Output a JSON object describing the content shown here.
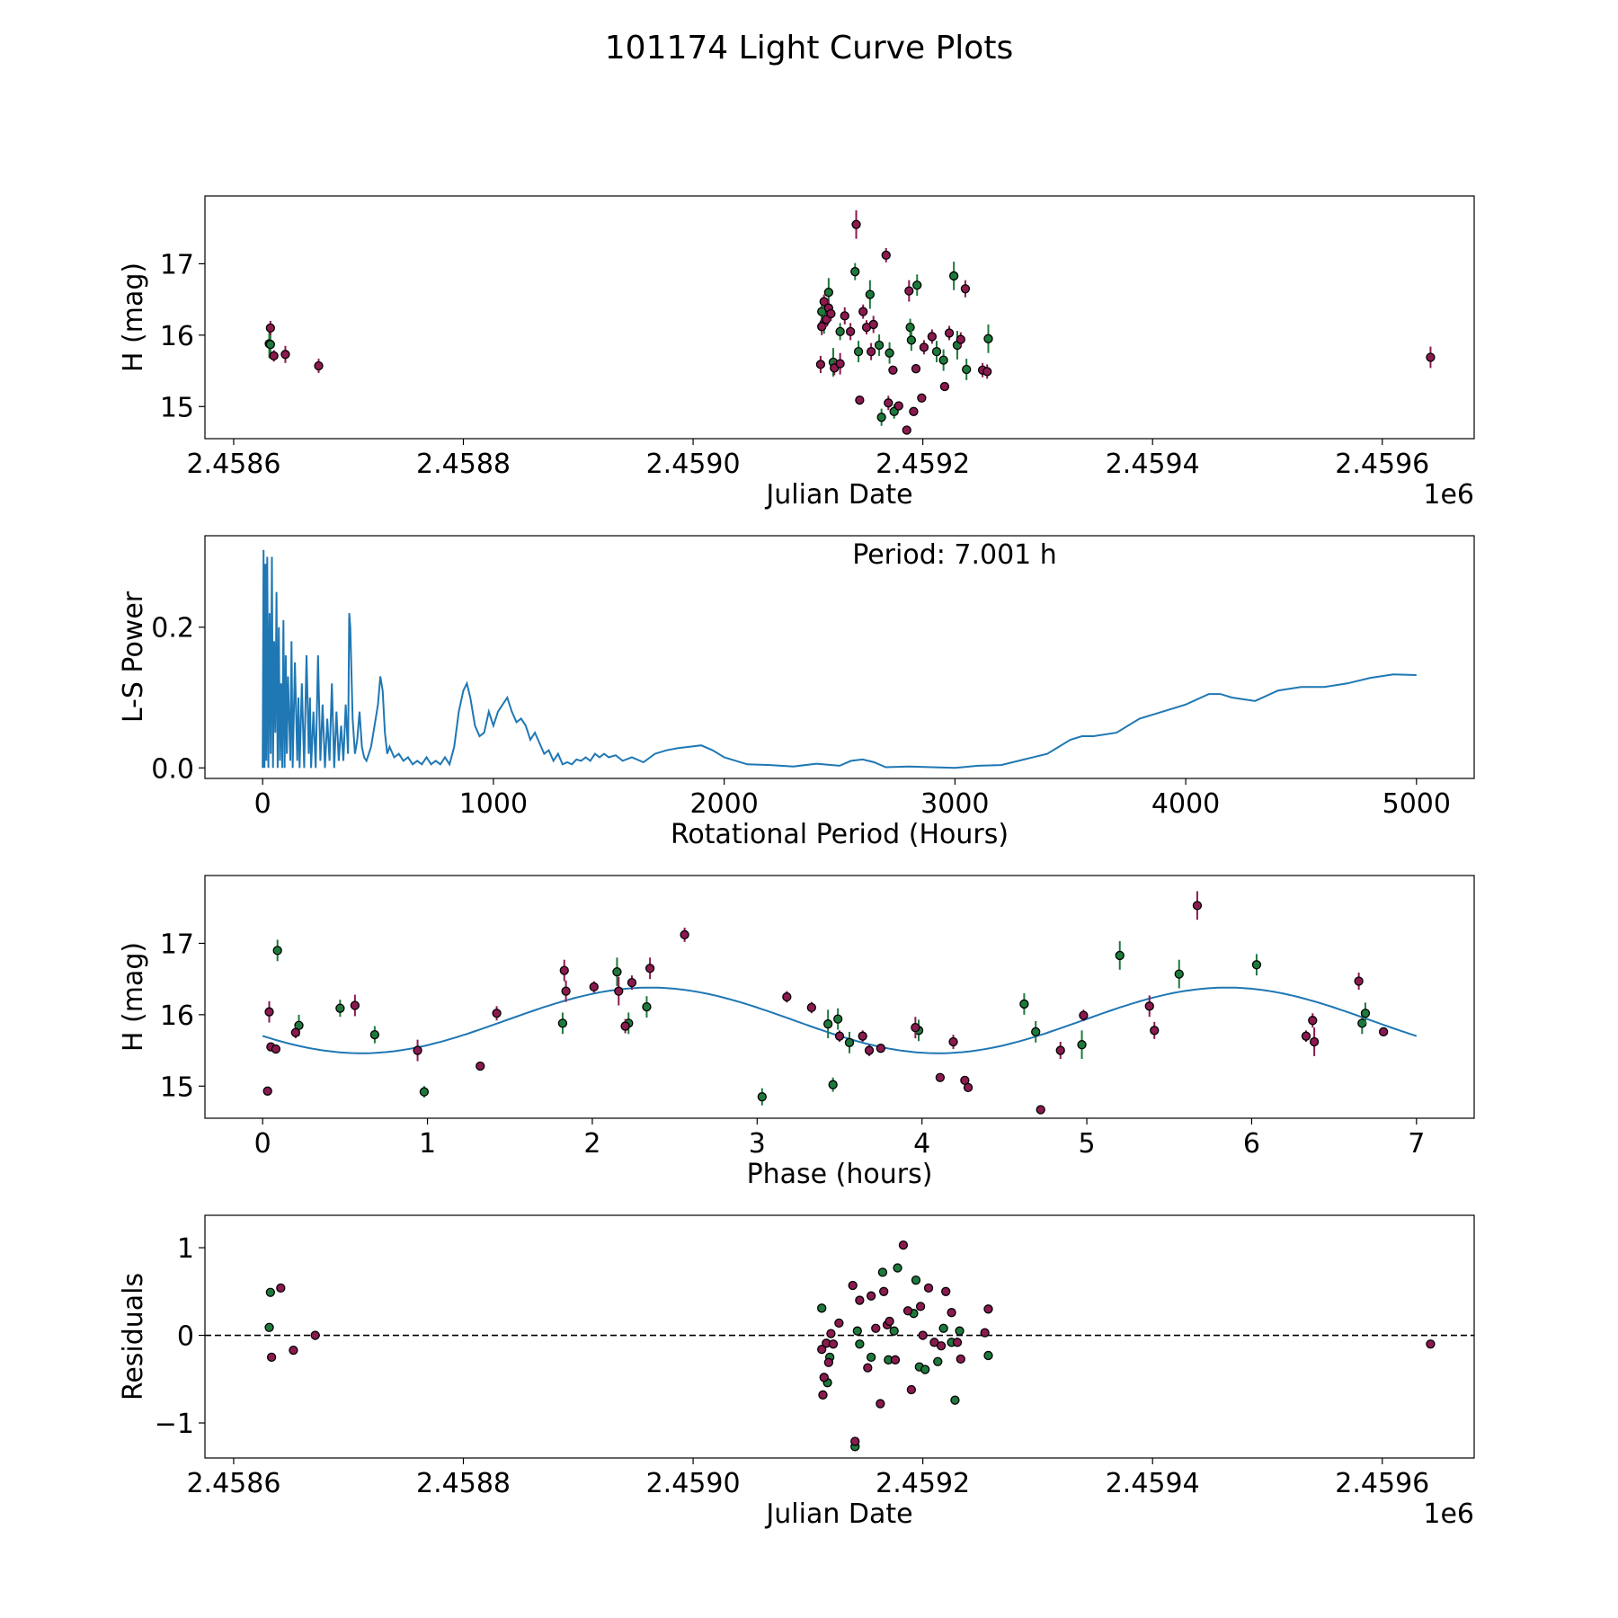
{
  "figure": {
    "title": "101174 Light Curve Plots"
  },
  "colors": {
    "green": "#1e7a3c",
    "magenta": "#8b1a4f",
    "curve": "#1f77b4",
    "edge": "#000000"
  },
  "chart_data": [
    {
      "id": "lightcurve",
      "type": "scatter",
      "title": "",
      "xlabel": "Julian Date",
      "ylabel": "H (mag)",
      "xlim": [
        2458575,
        2459680
      ],
      "ylim": [
        14.55,
        17.95
      ],
      "xticks": [
        2458600,
        2458800,
        2459000,
        2459200,
        2459400,
        2459600
      ],
      "xtick_labels": [
        "2.4586",
        "2.4588",
        "2.4590",
        "2.4592",
        "2.4594",
        "2.4596"
      ],
      "x_offset_label": "1e6",
      "yticks": [
        15,
        16,
        17
      ],
      "ytick_labels": [
        "15",
        "16",
        "17"
      ],
      "series": [
        {
          "name": "green",
          "color": "green",
          "x": [
            2458631,
            2458632,
            2459112,
            2459114,
            2459118,
            2459122,
            2459128,
            2459141,
            2459144,
            2459154,
            2459162,
            2459164,
            2459171,
            2459175,
            2459189,
            2459190,
            2459195,
            2459212,
            2459218,
            2459227,
            2459230,
            2459238,
            2459257
          ],
          "y": [
            15.88,
            15.87,
            16.33,
            16.17,
            16.6,
            15.62,
            16.05,
            16.89,
            15.77,
            16.57,
            15.86,
            14.85,
            15.75,
            14.93,
            16.11,
            15.93,
            16.7,
            15.77,
            15.65,
            16.83,
            15.86,
            15.52,
            15.95
          ],
          "err": [
            0.2,
            0.2,
            0.15,
            0.15,
            0.2,
            0.2,
            0.12,
            0.12,
            0.15,
            0.2,
            0.15,
            0.12,
            0.15,
            0.1,
            0.12,
            0.15,
            0.15,
            0.15,
            0.15,
            0.2,
            0.2,
            0.15,
            0.2
          ]
        },
        {
          "name": "magenta",
          "color": "magenta",
          "x": [
            2458632,
            2458635,
            2458645,
            2458674,
            2459111,
            2459112,
            2459114,
            2459116,
            2459118,
            2459120,
            2459123,
            2459128,
            2459132,
            2459137,
            2459142,
            2459145,
            2459148,
            2459151,
            2459155,
            2459157,
            2459168,
            2459170,
            2459174,
            2459179,
            2459186,
            2459188,
            2459192,
            2459194,
            2459199,
            2459201,
            2459208,
            2459219,
            2459223,
            2459233,
            2459237,
            2459252,
            2459256,
            2459642
          ],
          "y": [
            16.1,
            15.71,
            15.73,
            15.57,
            15.59,
            16.12,
            16.47,
            16.22,
            16.38,
            16.3,
            15.54,
            15.6,
            16.27,
            16.05,
            17.55,
            15.09,
            16.33,
            16.11,
            15.77,
            16.15,
            17.12,
            15.05,
            15.51,
            15.01,
            14.67,
            16.62,
            14.93,
            15.53,
            15.12,
            15.83,
            15.98,
            15.28,
            16.03,
            15.94,
            16.65,
            15.51,
            15.49,
            15.69
          ],
          "err": [
            0.1,
            0.08,
            0.12,
            0.1,
            0.12,
            0.12,
            0.1,
            0.1,
            0.1,
            0.1,
            0.1,
            0.15,
            0.12,
            0.12,
            0.2,
            0.06,
            0.1,
            0.1,
            0.12,
            0.12,
            0.1,
            0.1,
            0.06,
            0.06,
            0.05,
            0.15,
            0.06,
            0.06,
            0.06,
            0.1,
            0.1,
            0.06,
            0.1,
            0.1,
            0.12,
            0.1,
            0.1,
            0.15
          ]
        }
      ]
    },
    {
      "id": "periodogram",
      "type": "line",
      "title": "",
      "annotation": "Period: 7.001 h",
      "xlabel": "Rotational Period (Hours)",
      "ylabel": "L-S Power",
      "xlim": [
        -250,
        5250
      ],
      "ylim": [
        -0.015,
        0.33
      ],
      "xticks": [
        0,
        1000,
        2000,
        3000,
        4000,
        5000
      ],
      "xtick_labels": [
        "0",
        "1000",
        "2000",
        "3000",
        "4000",
        "5000"
      ],
      "yticks": [
        0.0,
        0.2
      ],
      "ytick_labels": [
        "0.0",
        "0.2"
      ],
      "series": [
        {
          "name": "power",
          "color": "curve",
          "x": [
            0,
            4,
            8,
            12,
            16,
            20,
            25,
            30,
            35,
            40,
            45,
            50,
            55,
            60,
            65,
            70,
            75,
            80,
            85,
            90,
            95,
            100,
            105,
            110,
            120,
            125,
            130,
            140,
            150,
            155,
            160,
            170,
            180,
            190,
            200,
            205,
            210,
            220,
            230,
            240,
            250,
            260,
            270,
            280,
            290,
            300,
            310,
            320,
            330,
            340,
            350,
            360,
            370,
            375,
            380,
            390,
            400,
            410,
            420,
            430,
            440,
            450,
            460,
            470,
            480,
            500,
            510,
            520,
            530,
            540,
            550,
            570,
            590,
            610,
            630,
            650,
            670,
            690,
            710,
            730,
            750,
            770,
            790,
            810,
            830,
            850,
            870,
            885,
            900,
            920,
            940,
            960,
            980,
            1000,
            1020,
            1040,
            1060,
            1080,
            1100,
            1120,
            1140,
            1160,
            1180,
            1200,
            1220,
            1240,
            1260,
            1280,
            1300,
            1320,
            1340,
            1360,
            1380,
            1400,
            1420,
            1440,
            1460,
            1480,
            1500,
            1530,
            1560,
            1600,
            1650,
            1700,
            1750,
            1800,
            1850,
            1900,
            1950,
            2000,
            2100,
            2200,
            2300,
            2400,
            2500,
            2550,
            2600,
            2650,
            2700,
            2800,
            2900,
            3000,
            3100,
            3200,
            3300,
            3400,
            3500,
            3550,
            3600,
            3700,
            3800,
            3900,
            4000,
            4100,
            4150,
            4200,
            4300,
            4400,
            4500,
            4600,
            4700,
            4800,
            4900,
            5000
          ],
          "y": [
            0.0,
            0.31,
            0.0,
            0.29,
            0.01,
            0.3,
            0.0,
            0.22,
            0.02,
            0.3,
            0.0,
            0.18,
            0.05,
            0.25,
            0.0,
            0.2,
            0.01,
            0.12,
            0.0,
            0.21,
            0.0,
            0.16,
            0.02,
            0.13,
            0.01,
            0.18,
            0.0,
            0.15,
            0.01,
            0.1,
            0.0,
            0.12,
            0.0,
            0.16,
            0.02,
            0.1,
            0.0,
            0.08,
            0.0,
            0.16,
            0.01,
            0.09,
            0.0,
            0.07,
            0.01,
            0.12,
            0.0,
            0.08,
            0.01,
            0.06,
            0.01,
            0.09,
            0.02,
            0.22,
            0.2,
            0.07,
            0.02,
            0.04,
            0.08,
            0.03,
            0.015,
            0.01,
            0.02,
            0.03,
            0.05,
            0.09,
            0.13,
            0.11,
            0.05,
            0.02,
            0.03,
            0.015,
            0.02,
            0.01,
            0.015,
            0.005,
            0.01,
            0.005,
            0.015,
            0.005,
            0.01,
            0.005,
            0.015,
            0.005,
            0.03,
            0.08,
            0.11,
            0.12,
            0.1,
            0.06,
            0.045,
            0.05,
            0.08,
            0.06,
            0.08,
            0.09,
            0.1,
            0.08,
            0.065,
            0.07,
            0.06,
            0.04,
            0.05,
            0.035,
            0.02,
            0.025,
            0.01,
            0.02,
            0.005,
            0.008,
            0.005,
            0.012,
            0.01,
            0.015,
            0.01,
            0.02,
            0.015,
            0.02,
            0.015,
            0.018,
            0.01,
            0.015,
            0.008,
            0.02,
            0.025,
            0.028,
            0.03,
            0.032,
            0.025,
            0.015,
            0.005,
            0.004,
            0.002,
            0.006,
            0.003,
            0.01,
            0.012,
            0.008,
            0.001,
            0.002,
            0.001,
            0.0,
            0.003,
            0.004,
            0.012,
            0.02,
            0.04,
            0.045,
            0.045,
            0.05,
            0.07,
            0.08,
            0.09,
            0.105,
            0.105,
            0.1,
            0.095,
            0.11,
            0.115,
            0.115,
            0.12,
            0.128,
            0.133,
            0.132
          ]
        }
      ]
    },
    {
      "id": "phasefold",
      "type": "scatter",
      "title": "",
      "xlabel": "Phase (hours)",
      "ylabel": "H (mag)",
      "xlim": [
        -0.35,
        7.35
      ],
      "ylim": [
        14.55,
        17.95
      ],
      "xticks": [
        0,
        1,
        2,
        3,
        4,
        5,
        6,
        7
      ],
      "xtick_labels": [
        "0",
        "1",
        "2",
        "3",
        "4",
        "5",
        "6",
        "7"
      ],
      "yticks": [
        15,
        16,
        17
      ],
      "ytick_labels": [
        "15",
        "16",
        "17"
      ],
      "model": {
        "type": "sinusoid",
        "mean": 15.92,
        "amplitude": 0.46,
        "period": 3.5,
        "phase": 0.6,
        "x_range": [
          0,
          7
        ],
        "color": "curve"
      },
      "series": [
        {
          "name": "green",
          "color": "green",
          "x": [
            0.09,
            0.22,
            0.47,
            0.68,
            0.98,
            1.82,
            2.15,
            2.22,
            2.33,
            3.03,
            3.43,
            3.46,
            3.49,
            3.56,
            3.98,
            4.62,
            4.69,
            4.97,
            5.2,
            5.56,
            6.03,
            6.67,
            6.69
          ],
          "y": [
            16.9,
            15.85,
            16.09,
            15.72,
            14.92,
            15.88,
            16.6,
            15.88,
            16.11,
            14.85,
            15.87,
            15.02,
            15.94,
            15.61,
            15.78,
            16.15,
            15.76,
            15.58,
            16.83,
            16.57,
            16.7,
            15.88,
            16.02
          ],
          "err": [
            0.15,
            0.15,
            0.12,
            0.12,
            0.08,
            0.15,
            0.2,
            0.15,
            0.15,
            0.12,
            0.2,
            0.1,
            0.15,
            0.15,
            0.15,
            0.15,
            0.15,
            0.2,
            0.2,
            0.2,
            0.15,
            0.15,
            0.15
          ]
        },
        {
          "name": "magenta",
          "color": "magenta",
          "x": [
            0.03,
            0.04,
            0.05,
            0.08,
            0.2,
            0.56,
            0.94,
            1.32,
            1.42,
            1.83,
            1.84,
            2.01,
            2.16,
            2.2,
            2.24,
            2.35,
            2.56,
            3.18,
            3.33,
            3.5,
            3.64,
            3.68,
            3.75,
            3.96,
            4.11,
            4.19,
            4.26,
            4.28,
            4.72,
            4.84,
            4.98,
            5.38,
            5.41,
            5.67,
            6.33,
            6.37,
            6.38,
            6.65,
            6.8
          ],
          "y": [
            14.93,
            16.04,
            15.55,
            15.52,
            15.75,
            16.13,
            15.5,
            15.28,
            16.02,
            16.62,
            16.33,
            16.39,
            16.33,
            15.84,
            16.45,
            16.65,
            17.12,
            16.25,
            16.1,
            15.7,
            15.7,
            15.5,
            15.53,
            15.82,
            15.12,
            15.62,
            15.08,
            14.98,
            14.67,
            15.5,
            15.99,
            16.12,
            15.78,
            17.53,
            15.7,
            15.92,
            15.62,
            16.47,
            15.76
          ],
          "err": [
            0.06,
            0.15,
            0.06,
            0.06,
            0.08,
            0.15,
            0.15,
            0.05,
            0.1,
            0.15,
            0.15,
            0.08,
            0.2,
            0.1,
            0.1,
            0.15,
            0.1,
            0.08,
            0.08,
            0.08,
            0.08,
            0.08,
            0.06,
            0.15,
            0.06,
            0.1,
            0.06,
            0.06,
            0.05,
            0.12,
            0.08,
            0.15,
            0.12,
            0.2,
            0.08,
            0.1,
            0.2,
            0.12,
            0.06
          ]
        }
      ]
    },
    {
      "id": "residuals",
      "type": "scatter",
      "title": "",
      "xlabel": "Julian Date",
      "ylabel": "Residuals",
      "xlim": [
        2458575,
        2459680
      ],
      "ylim": [
        -1.4,
        1.37
      ],
      "xticks": [
        2458600,
        2458800,
        2459000,
        2459200,
        2459400,
        2459600
      ],
      "xtick_labels": [
        "2.4586",
        "2.4588",
        "2.4590",
        "2.4592",
        "2.4594",
        "2.4596"
      ],
      "x_offset_label": "1e6",
      "yticks": [
        -1,
        0,
        1
      ],
      "ytick_labels": [
        "−1",
        "0",
        "1"
      ],
      "reference_line": {
        "y": 0,
        "style": "dashed"
      },
      "series": [
        {
          "name": "green",
          "color": "green",
          "x": [
            2458631,
            2458632,
            2459112,
            2459117,
            2459119,
            2459141,
            2459143,
            2459145,
            2459155,
            2459165,
            2459170,
            2459175,
            2459178,
            2459192,
            2459194,
            2459197,
            2459202,
            2459213,
            2459218,
            2459225,
            2459228,
            2459232,
            2459257
          ],
          "y": [
            0.09,
            0.49,
            0.31,
            -0.54,
            -0.25,
            -1.27,
            0.05,
            -0.1,
            -0.25,
            0.72,
            -0.28,
            0.05,
            0.77,
            0.25,
            0.63,
            -0.36,
            -0.39,
            -0.3,
            0.08,
            -0.08,
            -0.74,
            0.05,
            -0.23
          ],
          "r": 0.05
        },
        {
          "name": "magenta",
          "color": "magenta",
          "x": [
            2458633,
            2458641,
            2458652,
            2458671,
            2459112,
            2459113,
            2459114,
            2459116,
            2459118,
            2459120,
            2459122,
            2459127,
            2459139,
            2459141,
            2459145,
            2459152,
            2459155,
            2459159,
            2459163,
            2459166,
            2459169,
            2459171,
            2459176,
            2459183,
            2459187,
            2459190,
            2459198,
            2459200,
            2459205,
            2459210,
            2459216,
            2459220,
            2459225,
            2459230,
            2459233,
            2459254,
            2459257,
            2459642
          ],
          "y": [
            -0.25,
            0.54,
            -0.17,
            0.0,
            -0.16,
            -0.68,
            -0.48,
            -0.09,
            -0.31,
            0.02,
            -0.1,
            0.14,
            0.57,
            -1.21,
            0.4,
            -0.37,
            0.45,
            0.08,
            -0.78,
            0.5,
            0.12,
            0.16,
            -0.28,
            1.03,
            0.28,
            -0.62,
            0.33,
            0.0,
            0.54,
            -0.08,
            -0.12,
            0.5,
            0.26,
            -0.08,
            -0.27,
            0.03,
            0.3,
            -0.1
          ],
          "r": 0.05
        }
      ]
    }
  ]
}
